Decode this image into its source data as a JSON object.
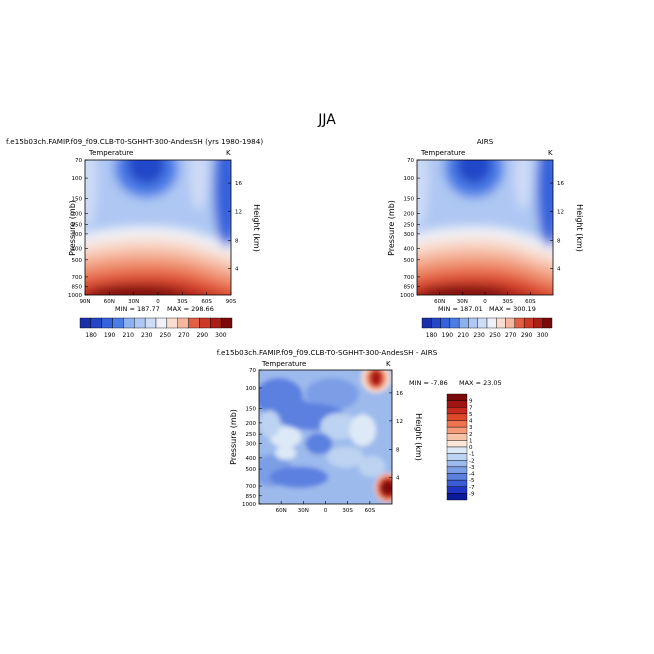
{
  "page": {
    "title": "JJA"
  },
  "chart_data": [
    {
      "type": "heatmap",
      "title": "f.e15b03ch.FAMIP.f09_f09.CLB-T0-SGHHT-300-AndesSH (yrs 1980-1984)",
      "field_label": "Temperature",
      "units": "K",
      "xlabel": "",
      "ylabel": "Pressure (mb)",
      "y2label": "Height (km)",
      "x_ticks": [
        "90N",
        "60N",
        "30N",
        "0",
        "30S",
        "60S",
        "90S"
      ],
      "x_range": [
        90,
        -90
      ],
      "y_ticks": [
        70,
        100,
        150,
        200,
        250,
        300,
        400,
        500,
        700,
        850,
        1000
      ],
      "y_range": [
        70,
        1000
      ],
      "y_scale": "log",
      "y2_ticks": [
        4,
        8,
        12,
        16
      ],
      "min_text": "MIN = 187.77",
      "max_text": "MAX = 298.66",
      "min": 187.77,
      "max": 298.66,
      "colorbar_labels": [
        "180",
        "190",
        "210",
        "230",
        "250",
        "270",
        "290",
        "300"
      ],
      "colorbar_levels": 14
    },
    {
      "type": "heatmap",
      "title": "AIRS",
      "field_label": "Temperature",
      "units": "K",
      "xlabel": "",
      "ylabel": "Pressure (mb)",
      "y2label": "Height (km)",
      "x_ticks": [
        "60N",
        "30N",
        "0",
        "30S",
        "60S"
      ],
      "x_range": [
        90,
        -90
      ],
      "y_ticks": [
        70,
        100,
        150,
        200,
        250,
        300,
        400,
        500,
        700,
        850,
        1000
      ],
      "y_range": [
        70,
        1000
      ],
      "y_scale": "log",
      "y2_ticks": [
        4,
        8,
        12,
        16
      ],
      "min_text": "MIN = 187.01",
      "max_text": "MAX = 300.19",
      "min": 187.01,
      "max": 300.19,
      "colorbar_labels": [
        "180",
        "190",
        "210",
        "230",
        "250",
        "270",
        "290",
        "300"
      ],
      "colorbar_levels": 14
    },
    {
      "type": "heatmap",
      "title": "f.e15b03ch.FAMIP.f09_f09.CLB-T0-SGHHT-300-AndesSH - AIRS",
      "field_label": "Temperature",
      "units": "K",
      "xlabel": "",
      "ylabel": "Pressure (mb)",
      "y2label": "Height (km)",
      "x_ticks": [
        "60N",
        "30N",
        "0",
        "30S",
        "60S"
      ],
      "x_range": [
        90,
        -90
      ],
      "y_ticks": [
        70,
        100,
        150,
        200,
        250,
        300,
        400,
        500,
        700,
        850,
        1000
      ],
      "y_range": [
        70,
        1000
      ],
      "y_scale": "log",
      "y2_ticks": [
        4,
        8,
        12,
        16
      ],
      "min_text": "MIN = -7.86",
      "max_text": "MAX = 23.05",
      "min": -7.86,
      "max": 23.05,
      "colorbar_labels": [
        "9",
        "7",
        "5",
        "4",
        "3",
        "2",
        "1",
        "0",
        "-1",
        "-2",
        "-3",
        "-4",
        "-5",
        "-7",
        "-9"
      ],
      "colorbar_colors": [
        "#7a0a0a",
        "#a01414",
        "#c62a1e",
        "#e0482c",
        "#ef7350",
        "#f59b7a",
        "#f8c3a8",
        "#fbe6d8",
        "#dde9f7",
        "#bcd3f1",
        "#9cbaec",
        "#7b9ee6",
        "#5b80e0",
        "#3a5bd4",
        "#1f34c2",
        "#0a1a9a"
      ]
    }
  ]
}
